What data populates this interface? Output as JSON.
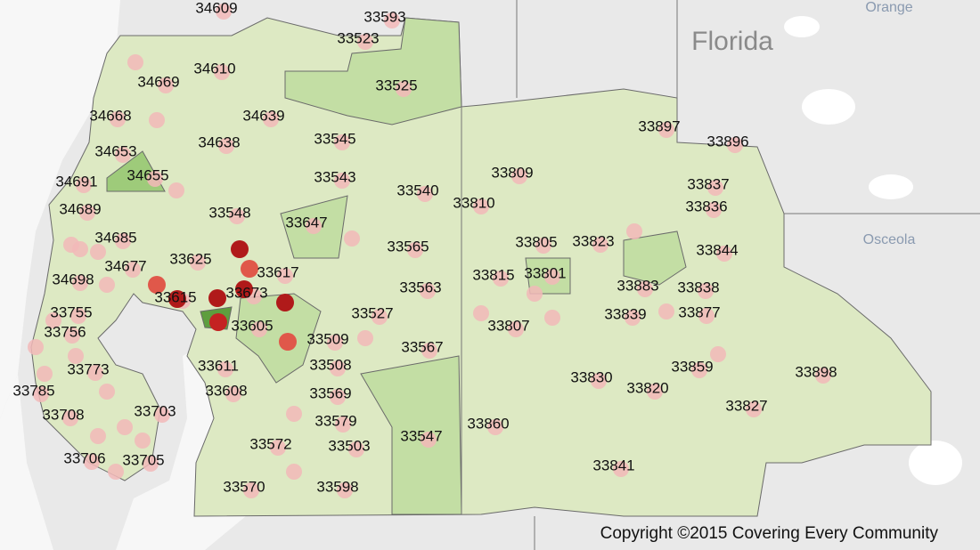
{
  "map": {
    "state_label": "Florida",
    "county_labels": [
      "Orange",
      "Osceola"
    ],
    "zip_labels": [
      "34609",
      "33593",
      "33523",
      "34610",
      "34669",
      "33525",
      "34668",
      "34639",
      "33897",
      "33545",
      "34638",
      "33896",
      "34653",
      "34655",
      "33809",
      "33543",
      "34691",
      "33837",
      "33540",
      "33810",
      "33548",
      "34689",
      "33836",
      "33647",
      "33805",
      "33823",
      "34685",
      "33565",
      "33844",
      "33625",
      "34677",
      "33617",
      "33815",
      "33801",
      "34698",
      "33883",
      "33838",
      "33563",
      "33615",
      "33673",
      "33755",
      "33527",
      "33839",
      "33877",
      "33807",
      "33756",
      "33605",
      "33509",
      "33567",
      "33773",
      "33611",
      "33508",
      "33859",
      "33898",
      "33785",
      "33608",
      "33830",
      "33820",
      "33569",
      "33708",
      "33703",
      "33827",
      "33860",
      "33579",
      "33547",
      "33572",
      "33503",
      "33706",
      "33705",
      "33841",
      "33570",
      "33598"
    ],
    "copyright": "Copyright ©2015 Covering Every Community"
  }
}
